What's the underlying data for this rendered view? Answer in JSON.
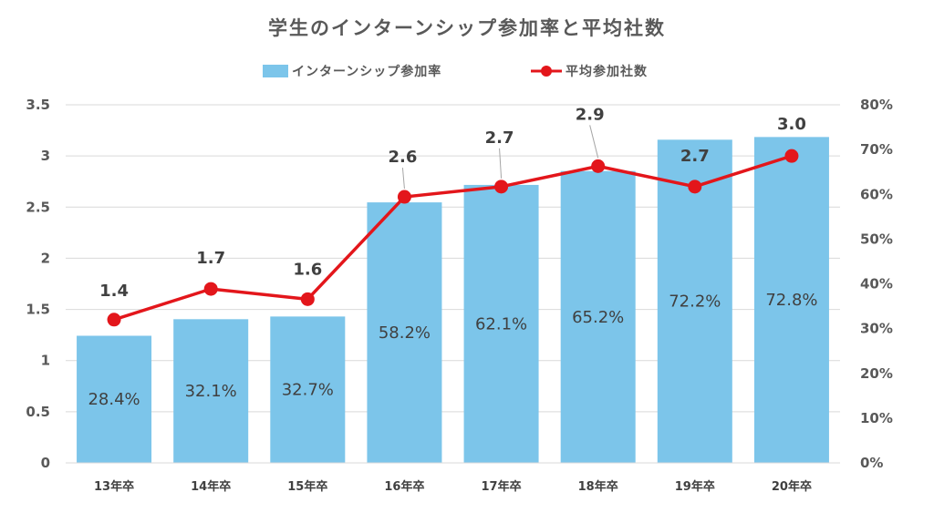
{
  "chart_data": {
    "type": "bar+line",
    "title": "学生のインターンシップ参加率と平均社数",
    "categories": [
      "13年卒",
      "14年卒",
      "15年卒",
      "16年卒",
      "17年卒",
      "18年卒",
      "19年卒",
      "20年卒"
    ],
    "series": [
      {
        "name": "インターンシップ参加率",
        "type": "bar",
        "axis": "right",
        "values": [
          28.4,
          32.1,
          32.7,
          58.2,
          62.1,
          65.2,
          72.2,
          72.8
        ],
        "labels": [
          "28.4%",
          "32.1%",
          "32.7%",
          "58.2%",
          "62.1%",
          "65.2%",
          "72.2%",
          "72.8%"
        ],
        "color": "#7cc5ea"
      },
      {
        "name": "平均参加社数",
        "type": "line",
        "axis": "left",
        "values": [
          1.4,
          1.7,
          1.6,
          2.6,
          2.7,
          2.9,
          2.7,
          3.0
        ],
        "labels": [
          "1.4",
          "1.7",
          "1.6",
          "2.6",
          "2.7",
          "2.9",
          "2.7",
          "3.0"
        ],
        "color": "#e3161b"
      }
    ],
    "y_left": {
      "ylim": [
        0,
        3.5
      ],
      "ticks": [
        "0",
        "0.5",
        "1",
        "1.5",
        "2",
        "2.5",
        "3",
        "3.5"
      ]
    },
    "y_right": {
      "ylim": [
        0,
        80
      ],
      "ticks": [
        "0%",
        "10%",
        "20%",
        "30%",
        "40%",
        "50%",
        "60%",
        "70%",
        "80%"
      ]
    },
    "grid": true,
    "legend_position": "top"
  }
}
